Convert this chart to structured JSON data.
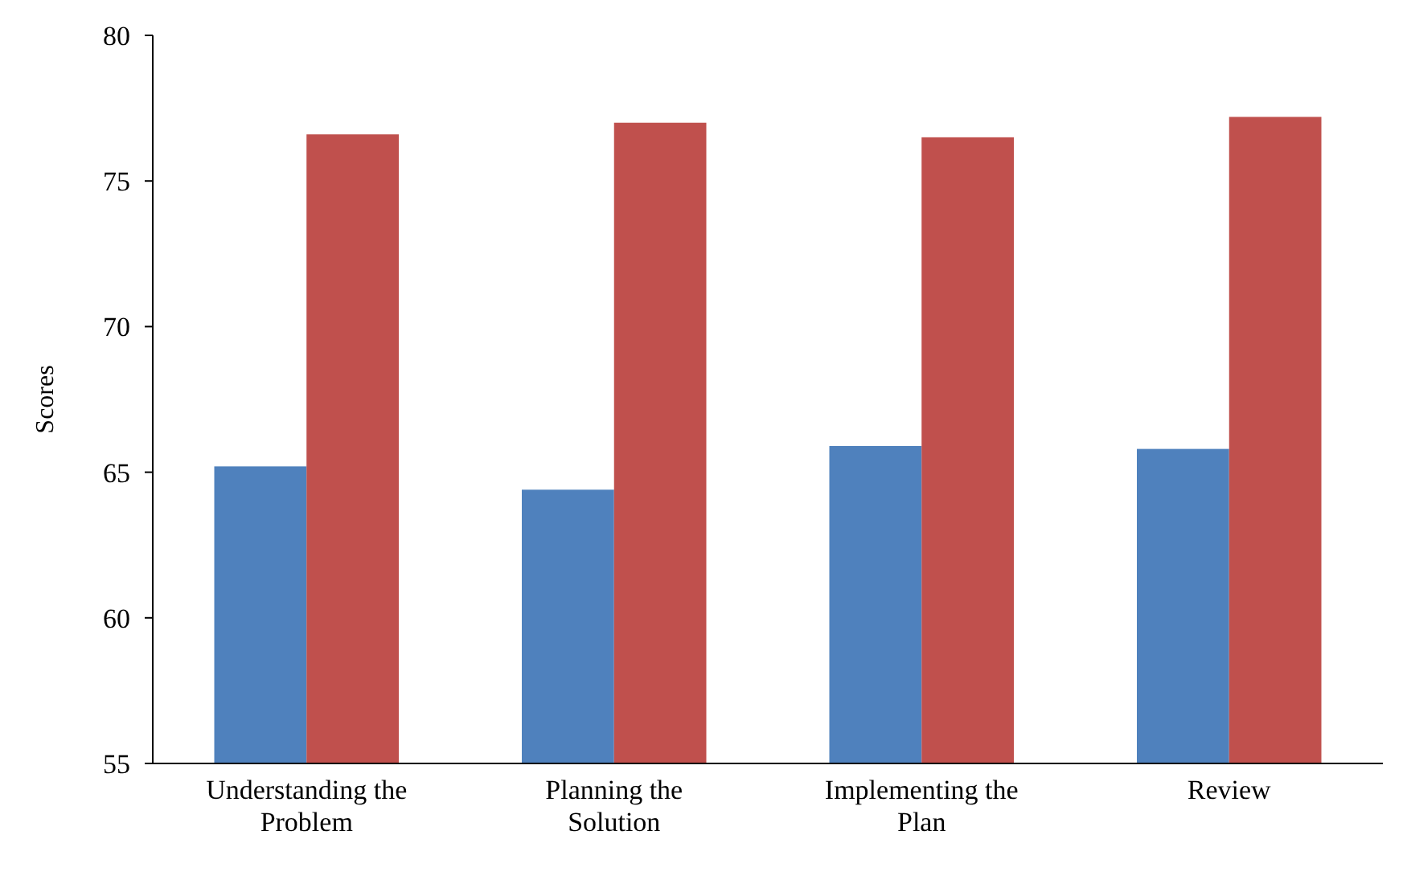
{
  "chart_data": {
    "type": "bar",
    "ylabel": "Scores",
    "categories": [
      "Understanding the Problem",
      "Planning the Solution",
      "Implementing the Plan",
      "Review"
    ],
    "series": [
      {
        "color": "#4f81bd",
        "values": [
          65.2,
          64.4,
          65.9,
          65.8
        ]
      },
      {
        "color": "#c0504d",
        "values": [
          76.6,
          77.0,
          76.5,
          77.2
        ]
      }
    ],
    "ylim": [
      55,
      80
    ],
    "yticks": [
      55,
      60,
      65,
      70,
      75,
      80
    ]
  }
}
